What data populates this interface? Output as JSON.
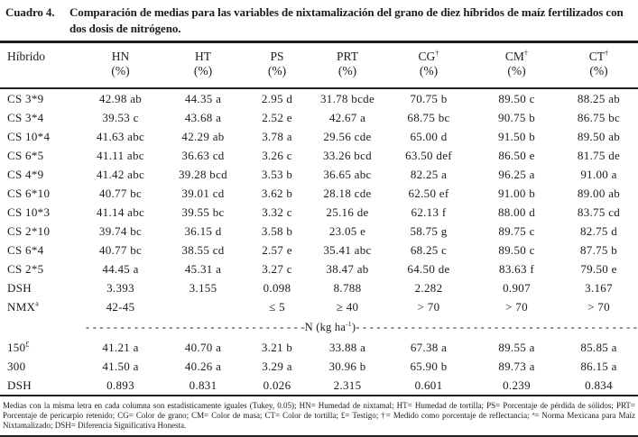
{
  "colors": {
    "text": "#1b1b1b",
    "rule": "#1f1f1f",
    "background": "#ffffff"
  },
  "title": {
    "label": "Cuadro 4.",
    "text": "Comparación de medias para las variables de nixtamalización del grano de diez híbridos de maíz fertilizados con dos dosis de nitrógeno."
  },
  "table": {
    "columns": [
      {
        "label": "Híbrido",
        "sup": "",
        "unit": ""
      },
      {
        "label": "HN",
        "sup": "",
        "unit": "(%)"
      },
      {
        "label": "HT",
        "sup": "",
        "unit": "(%)"
      },
      {
        "label": "PS",
        "sup": "",
        "unit": "(%)"
      },
      {
        "label": "PRT",
        "sup": "",
        "unit": "(%)"
      },
      {
        "label": "CG",
        "sup": "†",
        "unit": "(%)"
      },
      {
        "label": "CM",
        "sup": "†",
        "unit": "(%)"
      },
      {
        "label": "CT",
        "sup": "†",
        "unit": "(%)"
      }
    ],
    "rows": [
      {
        "label": "CS 3*9",
        "sup": "",
        "values": [
          "42.98 ab",
          "44.35 a",
          "2.95 d",
          "31.78 bcde",
          "70.75 b",
          "89.50 c",
          "88.25 ab"
        ]
      },
      {
        "label": "CS 3*4",
        "sup": "",
        "values": [
          "39.53 c",
          "43.68 a",
          "2.52 e",
          "42.67 a",
          "68.75 bc",
          "90.75 b",
          "86.75 bc"
        ]
      },
      {
        "label": "CS 10*4",
        "sup": "",
        "values": [
          "41.63 abc",
          "42.29 ab",
          "3.78 a",
          "29.56 cde",
          "65.00 d",
          "91.50 b",
          "89.50 ab"
        ]
      },
      {
        "label": "CS 6*5",
        "sup": "",
        "values": [
          "41.11 abc",
          "36.63 cd",
          "3.26 c",
          "33.26 bcd",
          "63.50 def",
          "86.50 e",
          "81.75 de"
        ]
      },
      {
        "label": "CS 4*9",
        "sup": "",
        "values": [
          "41.42 abc",
          "39.28 bcd",
          "3.53 b",
          "36.65 abc",
          "82.25 a",
          "96.25 a",
          "91.00 a"
        ]
      },
      {
        "label": "CS 6*10",
        "sup": "",
        "values": [
          "40.77 bc",
          "39.01 cd",
          "3.62 b",
          "28.18 cde",
          "62.50 ef",
          "91.00 b",
          "89.00 ab"
        ]
      },
      {
        "label": "CS 10*3",
        "sup": "",
        "values": [
          "41.14 abc",
          "39.55 bc",
          "3.32 c",
          "25.16 de",
          "62.13 f",
          "88.00 d",
          "83.75 cd"
        ]
      },
      {
        "label": "CS 2*10",
        "sup": "",
        "values": [
          "39.74 bc",
          "36.15 d",
          "3.58 b",
          "23.05 e",
          "58.75 g",
          "89.75 c",
          "82.75 d"
        ]
      },
      {
        "label": "CS 6*4",
        "sup": "",
        "values": [
          "40.77 bc",
          "38.55 cd",
          "2.57 e",
          "35.41 abc",
          "68.25 c",
          "89.50 c",
          "87.75 b"
        ]
      },
      {
        "label": "CS 2*5",
        "sup": "",
        "values": [
          "44.45 a",
          "45.31 a",
          "3.27 c",
          "38.47 ab",
          "64.50 de",
          "83.63 f",
          "79.50 e"
        ]
      },
      {
        "label": "DSH",
        "sup": "",
        "values": [
          "3.393",
          "3.155",
          "0.098",
          "8.788",
          "2.282",
          "0.907",
          "3.167"
        ]
      },
      {
        "label": "NMX",
        "sup": "a",
        "values": [
          "42-45",
          "",
          "≤ 5",
          "≥ 40",
          "> 70",
          "> 70",
          "> 70"
        ]
      },
      {
        "type": "divider",
        "label": "",
        "sup": "",
        "values": []
      },
      {
        "label": "150",
        "sup": "£",
        "values": [
          "41.21 a",
          "40.70 a",
          "3.21 b",
          "33.88 a",
          "67.38 a",
          "89.55 a",
          "85.85 a"
        ]
      },
      {
        "label": "300",
        "sup": "",
        "values": [
          "41.50 a",
          "40.26 a",
          "3.29 a",
          "30.96 b",
          "65.90 b",
          "89.73 a",
          "86.15 a"
        ]
      },
      {
        "label": "DSH",
        "sup": "",
        "values": [
          "0.893",
          "0.831",
          "0.026",
          "2.315",
          "0.601",
          "0.239",
          "0.834"
        ]
      }
    ],
    "divider": {
      "dashes_left": "- - - - - - - - - - - - - - - - - - - - - - - - - - - - - - - ",
      "label_pre": "-N (kg ha",
      "label_sup": "-1",
      "label_post": ")-",
      "dashes_right": " - - - - - - - - - - - - - - - - - - - - - - - - - - - - - - - - - - - - - - - - - - -"
    }
  },
  "footnote": "Medias con la misma letra en cada columna son estadísticamente iguales (Tukey, 0.05); HN= Humedad de nixtamal; HT= Humedad de tortilla; PS= Porcentaje de pérdida de sólidos; PRT= Porcentaje de pericarpio retenido; CG= Color de grano; CM= Color de masa; CT= Color de tortilla; £= Testigo; †= Medido como porcentaje de reflectancia; ª= Norma Mexicana para Maíz Nixtamalizado; DSH= Diferencia Significativa Honesta."
}
